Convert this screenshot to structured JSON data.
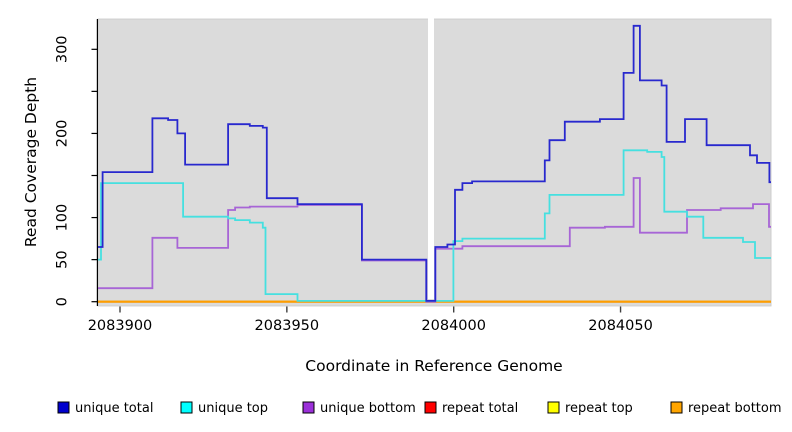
{
  "figure": {
    "background": "#ffffff",
    "description": "Read coverage depth step plot across a reference genome window"
  },
  "chart_data": {
    "type": "line",
    "title": "",
    "xlabel": "Coordinate in Reference Genome",
    "ylabel": "Read Coverage Depth",
    "x_domain": [
      2083893.4,
      2084095.1
    ],
    "y_domain": [
      0,
      340
    ],
    "x_ticks": [
      2083900,
      2083950,
      2084000,
      2084050
    ],
    "x_tick_labels": [
      "2083900",
      "2083950",
      "2084000",
      "2084050"
    ],
    "y_ticks": [
      0,
      50,
      100,
      150,
      200,
      250,
      300
    ],
    "y_tick_labels": [
      "0",
      "50",
      "100",
      "",
      "200",
      "",
      "300"
    ],
    "grid": false,
    "legend_position": "bottom",
    "panel_background": "#DBDBDB",
    "panel_edge": "#C9C9C9",
    "coverage_gap_x": [
      2083992.3,
      2083994.1
    ],
    "series": [
      {
        "name": "unique total",
        "line_color": "#2828CE",
        "legend_color": "#0000CD",
        "steps": [
          [
            2083893.4,
            65
          ],
          [
            2083894.8,
            154
          ],
          [
            2083909.7,
            218
          ],
          [
            2083914.4,
            216
          ],
          [
            2083917.2,
            200
          ],
          [
            2083919.5,
            163
          ],
          [
            2083932.4,
            211
          ],
          [
            2083938.9,
            209
          ],
          [
            2083942.8,
            207
          ],
          [
            2083944.0,
            123
          ],
          [
            2083953.2,
            116
          ],
          [
            2083972.5,
            50
          ],
          [
            2083991.8,
            1
          ],
          [
            2083994.5,
            65
          ],
          [
            2083998.1,
            68
          ],
          [
            2084000.4,
            133
          ],
          [
            2084002.6,
            141
          ],
          [
            2084005.5,
            143
          ],
          [
            2084027.3,
            168
          ],
          [
            2084028.7,
            192
          ],
          [
            2084033.3,
            214
          ],
          [
            2084043.8,
            217
          ],
          [
            2084050.9,
            272
          ],
          [
            2084053.9,
            328
          ],
          [
            2084055.8,
            263
          ],
          [
            2084062.3,
            257
          ],
          [
            2084063.8,
            190
          ],
          [
            2084069.3,
            217
          ],
          [
            2084075.8,
            186
          ],
          [
            2084088.8,
            174
          ],
          [
            2084090.9,
            165
          ],
          [
            2084094.6,
            142
          ]
        ]
      },
      {
        "name": "unique top",
        "line_color": "#45E0E0",
        "legend_color": "#00FFFF",
        "steps": [
          [
            2083893.4,
            50
          ],
          [
            2083894.3,
            141
          ],
          [
            2083918.9,
            101
          ],
          [
            2083932.4,
            99
          ],
          [
            2083934.5,
            97
          ],
          [
            2083938.9,
            94
          ],
          [
            2083942.8,
            88
          ],
          [
            2083943.6,
            9
          ],
          [
            2083953.2,
            1
          ],
          [
            2083999.9,
            72
          ],
          [
            2084002.6,
            75
          ],
          [
            2084027.3,
            105
          ],
          [
            2084028.7,
            127
          ],
          [
            2084050.9,
            180
          ],
          [
            2084058.0,
            178
          ],
          [
            2084062.3,
            172
          ],
          [
            2084063.1,
            107
          ],
          [
            2084069.9,
            101
          ],
          [
            2084074.8,
            76
          ],
          [
            2084086.7,
            71
          ],
          [
            2084090.3,
            52
          ]
        ]
      },
      {
        "name": "unique bottom",
        "line_color": "#A765D6",
        "legend_color": "#9B30D9",
        "steps": [
          [
            2083893.4,
            16
          ],
          [
            2083909.7,
            76
          ],
          [
            2083917.2,
            64
          ],
          [
            2083932.4,
            109
          ],
          [
            2083934.5,
            112
          ],
          [
            2083938.9,
            113
          ],
          [
            2083953.2,
            115
          ],
          [
            2083972.5,
            49
          ],
          [
            2083991.8,
            0
          ],
          [
            2083994.5,
            63
          ],
          [
            2084002.6,
            66
          ],
          [
            2084034.8,
            88
          ],
          [
            2084045.3,
            89
          ],
          [
            2084053.9,
            147
          ],
          [
            2084055.8,
            82
          ],
          [
            2084069.9,
            109
          ],
          [
            2084080.0,
            111
          ],
          [
            2084089.7,
            116
          ],
          [
            2084094.5,
            89
          ]
        ]
      },
      {
        "name": "repeat total",
        "line_color": "#E00000",
        "legend_color": "#FF0000",
        "steps": [
          [
            2083893.4,
            0
          ]
        ]
      },
      {
        "name": "repeat top",
        "line_color": "#F0F000",
        "legend_color": "#FFFF00",
        "steps": [
          [
            2083893.4,
            0
          ]
        ]
      },
      {
        "name": "repeat bottom",
        "line_color": "#FF9E00",
        "legend_color": "#FFA500",
        "steps": [
          [
            2083893.4,
            0
          ]
        ]
      }
    ]
  }
}
